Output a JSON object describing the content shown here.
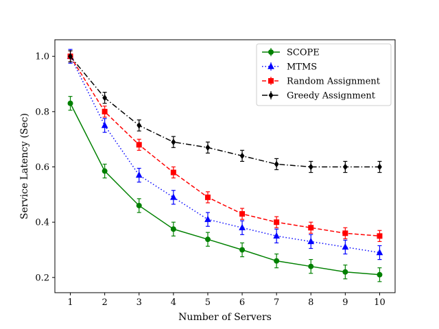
{
  "chart_data": {
    "type": "line",
    "title": "",
    "xlabel": "Number of Servers",
    "ylabel": "Service Latency (Sec)",
    "x": [
      1,
      2,
      3,
      4,
      5,
      6,
      7,
      8,
      9,
      10
    ],
    "xticks": [
      "1",
      "2",
      "3",
      "4",
      "5",
      "6",
      "7",
      "8",
      "9",
      "10"
    ],
    "yticks": [
      "0.2",
      "0.4",
      "0.6",
      "0.8",
      "1.0"
    ],
    "xlim": [
      0.55,
      10.45
    ],
    "ylim": [
      0.145,
      1.06
    ],
    "legend_position": "top-right",
    "grid": false,
    "series": [
      {
        "name": "SCOPE",
        "color": "#008000",
        "linestyle": "solid",
        "marker": "circle",
        "values": [
          0.83,
          0.585,
          0.46,
          0.375,
          0.338,
          0.3,
          0.26,
          0.24,
          0.22,
          0.21
        ],
        "errors": [
          0.025,
          0.025,
          0.025,
          0.025,
          0.025,
          0.025,
          0.025,
          0.025,
          0.025,
          0.025
        ]
      },
      {
        "name": "MTMS",
        "color": "#0000ff",
        "linestyle": "dotted",
        "marker": "triangle",
        "values": [
          1.0,
          0.75,
          0.57,
          0.49,
          0.41,
          0.38,
          0.35,
          0.33,
          0.31,
          0.29
        ],
        "errors": [
          0.025,
          0.025,
          0.025,
          0.025,
          0.025,
          0.025,
          0.025,
          0.025,
          0.025,
          0.025
        ]
      },
      {
        "name": "Random Assignment",
        "color": "#ff0000",
        "linestyle": "dashed",
        "marker": "square",
        "values": [
          1.0,
          0.8,
          0.68,
          0.58,
          0.49,
          0.43,
          0.4,
          0.38,
          0.36,
          0.35
        ],
        "errors": [
          0.02,
          0.02,
          0.02,
          0.02,
          0.02,
          0.02,
          0.02,
          0.02,
          0.02,
          0.02
        ]
      },
      {
        "name": "Greedy Assignment",
        "color": "#000000",
        "linestyle": "dashdot",
        "marker": "diamond",
        "values": [
          1.0,
          0.85,
          0.75,
          0.69,
          0.67,
          0.64,
          0.61,
          0.6,
          0.6,
          0.6
        ],
        "errors": [
          0.02,
          0.02,
          0.02,
          0.02,
          0.02,
          0.02,
          0.02,
          0.02,
          0.02,
          0.02
        ]
      }
    ]
  }
}
